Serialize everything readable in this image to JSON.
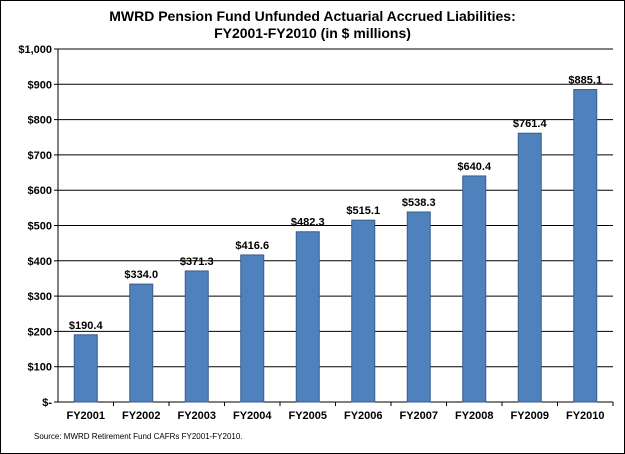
{
  "chart_data": {
    "type": "bar",
    "title_line1": "MWRD Pension Fund Unfunded Actuarial Accrued Liabilities:",
    "title_line2": "FY2001-FY2010 (in $ millions)",
    "categories": [
      "FY2001",
      "FY2002",
      "FY2003",
      "FY2004",
      "FY2005",
      "FY2006",
      "FY2007",
      "FY2008",
      "FY2009",
      "FY2010"
    ],
    "values": [
      190.4,
      334.0,
      371.3,
      416.6,
      482.3,
      515.1,
      538.3,
      640.4,
      761.4,
      885.1
    ],
    "data_labels": [
      "$190.4",
      "$334.0",
      "$371.3",
      "$416.6",
      "$482.3",
      "$515.1",
      "$538.3",
      "$640.4",
      "$761.4",
      "$885.1"
    ],
    "yticks": [
      0,
      100,
      200,
      300,
      400,
      500,
      600,
      700,
      800,
      900,
      1000
    ],
    "ytick_labels": [
      "$-",
      "$100",
      "$200",
      "$300",
      "$400",
      "$500",
      "$600",
      "$700",
      "$800",
      "$900",
      "$1,000"
    ],
    "ylim": [
      0,
      1000
    ],
    "grid": true,
    "legend": "none",
    "bar_color": "#4F81BD",
    "bar_edge_color": "#385D8A",
    "source": "Source: MWRD Retirement Fund CAFRs FY2001-FY2010."
  }
}
